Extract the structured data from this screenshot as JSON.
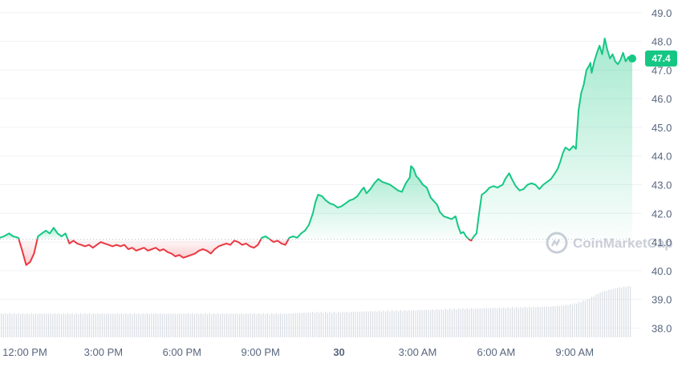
{
  "chart_data": {
    "type": "line",
    "y_ticks": [
      "49.0",
      "48.0",
      "47.0",
      "46.0",
      "45.0",
      "44.0",
      "43.0",
      "42.0",
      "41.0",
      "40.0",
      "39.0",
      "38.0"
    ],
    "ylim": [
      37.9,
      49.05
    ],
    "x_ticks": [
      {
        "label": "12:00 PM",
        "t": 12,
        "bold": false
      },
      {
        "label": "3:00 PM",
        "t": 15,
        "bold": false
      },
      {
        "label": "6:00 PM",
        "t": 18,
        "bold": false
      },
      {
        "label": "9:00 PM",
        "t": 21,
        "bold": false
      },
      {
        "label": "30",
        "t": 24,
        "bold": true
      },
      {
        "label": "3:00 AM",
        "t": 27,
        "bold": false
      },
      {
        "label": "6:00 AM",
        "t": 30,
        "bold": false
      },
      {
        "label": "9:00 AM",
        "t": 33,
        "bold": false
      }
    ],
    "xlim": [
      11.05,
      35.2
    ],
    "baseline": 41.1,
    "last_value": 47.4,
    "last_value_label": "47.4",
    "watermark": "CoinMarketCap",
    "colors": {
      "up": "#16c784",
      "down": "#ea3943",
      "grid": "#eff2f5",
      "volume": "#d9dde4",
      "baseline": "#c0c6d0"
    },
    "series": [
      {
        "values": [
          [
            11.05,
            41.15
          ],
          [
            11.2,
            41.2
          ],
          [
            11.4,
            41.3
          ],
          [
            11.55,
            41.2
          ],
          [
            11.75,
            41.15
          ],
          [
            11.9,
            40.7
          ],
          [
            12.05,
            40.2
          ],
          [
            12.2,
            40.3
          ],
          [
            12.35,
            40.6
          ],
          [
            12.5,
            41.2
          ],
          [
            12.65,
            41.3
          ],
          [
            12.8,
            41.4
          ],
          [
            12.95,
            41.3
          ],
          [
            13.1,
            41.5
          ],
          [
            13.25,
            41.3
          ],
          [
            13.4,
            41.2
          ],
          [
            13.55,
            41.3
          ],
          [
            13.7,
            40.95
          ],
          [
            13.85,
            41.05
          ],
          [
            14.0,
            40.95
          ],
          [
            14.15,
            40.9
          ],
          [
            14.3,
            40.85
          ],
          [
            14.45,
            40.9
          ],
          [
            14.6,
            40.8
          ],
          [
            14.75,
            40.9
          ],
          [
            14.9,
            41.0
          ],
          [
            15.05,
            40.95
          ],
          [
            15.2,
            40.9
          ],
          [
            15.35,
            40.85
          ],
          [
            15.5,
            40.9
          ],
          [
            15.65,
            40.85
          ],
          [
            15.8,
            40.9
          ],
          [
            15.95,
            40.75
          ],
          [
            16.1,
            40.8
          ],
          [
            16.25,
            40.7
          ],
          [
            16.4,
            40.75
          ],
          [
            16.55,
            40.8
          ],
          [
            16.7,
            40.7
          ],
          [
            16.85,
            40.75
          ],
          [
            17.0,
            40.8
          ],
          [
            17.15,
            40.7
          ],
          [
            17.3,
            40.75
          ],
          [
            17.45,
            40.65
          ],
          [
            17.6,
            40.6
          ],
          [
            17.75,
            40.5
          ],
          [
            17.9,
            40.55
          ],
          [
            18.05,
            40.45
          ],
          [
            18.2,
            40.5
          ],
          [
            18.35,
            40.55
          ],
          [
            18.5,
            40.6
          ],
          [
            18.65,
            40.7
          ],
          [
            18.8,
            40.75
          ],
          [
            18.95,
            40.7
          ],
          [
            19.1,
            40.6
          ],
          [
            19.25,
            40.75
          ],
          [
            19.4,
            40.85
          ],
          [
            19.55,
            40.9
          ],
          [
            19.7,
            40.95
          ],
          [
            19.85,
            40.9
          ],
          [
            20.0,
            41.05
          ],
          [
            20.15,
            41.0
          ],
          [
            20.3,
            40.9
          ],
          [
            20.45,
            40.95
          ],
          [
            20.6,
            40.85
          ],
          [
            20.75,
            40.8
          ],
          [
            20.9,
            40.9
          ],
          [
            21.05,
            41.15
          ],
          [
            21.2,
            41.2
          ],
          [
            21.35,
            41.1
          ],
          [
            21.5,
            41.0
          ],
          [
            21.65,
            41.05
          ],
          [
            21.8,
            40.95
          ],
          [
            21.95,
            40.9
          ],
          [
            22.1,
            41.15
          ],
          [
            22.25,
            41.2
          ],
          [
            22.4,
            41.15
          ],
          [
            22.55,
            41.3
          ],
          [
            22.7,
            41.4
          ],
          [
            22.85,
            41.6
          ],
          [
            23.0,
            42.0
          ],
          [
            23.1,
            42.4
          ],
          [
            23.2,
            42.65
          ],
          [
            23.35,
            42.6
          ],
          [
            23.5,
            42.45
          ],
          [
            23.65,
            42.35
          ],
          [
            23.8,
            42.3
          ],
          [
            23.95,
            42.2
          ],
          [
            24.1,
            42.25
          ],
          [
            24.25,
            42.35
          ],
          [
            24.4,
            42.45
          ],
          [
            24.55,
            42.5
          ],
          [
            24.7,
            42.6
          ],
          [
            24.85,
            42.8
          ],
          [
            24.95,
            42.9
          ],
          [
            25.05,
            42.7
          ],
          [
            25.2,
            42.85
          ],
          [
            25.35,
            43.05
          ],
          [
            25.5,
            43.2
          ],
          [
            25.65,
            43.1
          ],
          [
            25.8,
            43.05
          ],
          [
            25.95,
            43.0
          ],
          [
            26.1,
            42.9
          ],
          [
            26.25,
            42.8
          ],
          [
            26.4,
            42.75
          ],
          [
            26.55,
            43.05
          ],
          [
            26.7,
            43.25
          ],
          [
            26.75,
            43.65
          ],
          [
            26.85,
            43.55
          ],
          [
            26.95,
            43.3
          ],
          [
            27.05,
            43.2
          ],
          [
            27.2,
            43.0
          ],
          [
            27.35,
            42.9
          ],
          [
            27.5,
            42.55
          ],
          [
            27.6,
            42.45
          ],
          [
            27.75,
            42.3
          ],
          [
            27.85,
            42.05
          ],
          [
            28.0,
            41.9
          ],
          [
            28.15,
            41.85
          ],
          [
            28.3,
            41.8
          ],
          [
            28.45,
            41.9
          ],
          [
            28.55,
            41.55
          ],
          [
            28.65,
            41.3
          ],
          [
            28.75,
            41.35
          ],
          [
            28.85,
            41.2
          ],
          [
            28.95,
            41.1
          ],
          [
            29.05,
            41.05
          ],
          [
            29.15,
            41.2
          ],
          [
            29.25,
            41.3
          ],
          [
            29.35,
            42.0
          ],
          [
            29.45,
            42.65
          ],
          [
            29.6,
            42.75
          ],
          [
            29.75,
            42.9
          ],
          [
            29.9,
            42.95
          ],
          [
            30.05,
            42.9
          ],
          [
            30.15,
            42.95
          ],
          [
            30.25,
            43.0
          ],
          [
            30.35,
            43.2
          ],
          [
            30.5,
            43.4
          ],
          [
            30.6,
            43.2
          ],
          [
            30.75,
            42.95
          ],
          [
            30.9,
            42.8
          ],
          [
            31.05,
            42.85
          ],
          [
            31.2,
            43.0
          ],
          [
            31.35,
            43.05
          ],
          [
            31.5,
            43.0
          ],
          [
            31.65,
            42.85
          ],
          [
            31.8,
            43.0
          ],
          [
            31.95,
            43.1
          ],
          [
            32.1,
            43.2
          ],
          [
            32.25,
            43.4
          ],
          [
            32.35,
            43.55
          ],
          [
            32.45,
            43.8
          ],
          [
            32.55,
            44.1
          ],
          [
            32.65,
            44.3
          ],
          [
            32.8,
            44.2
          ],
          [
            32.95,
            44.35
          ],
          [
            33.05,
            44.25
          ],
          [
            33.15,
            45.6
          ],
          [
            33.25,
            46.2
          ],
          [
            33.35,
            46.5
          ],
          [
            33.45,
            47.0
          ],
          [
            33.55,
            47.15
          ],
          [
            33.6,
            47.25
          ],
          [
            33.65,
            46.9
          ],
          [
            33.75,
            47.3
          ],
          [
            33.85,
            47.6
          ],
          [
            33.95,
            47.85
          ],
          [
            34.05,
            47.55
          ],
          [
            34.15,
            48.1
          ],
          [
            34.25,
            47.7
          ],
          [
            34.35,
            47.4
          ],
          [
            34.45,
            47.55
          ],
          [
            34.55,
            47.3
          ],
          [
            34.65,
            47.2
          ],
          [
            34.75,
            47.35
          ],
          [
            34.85,
            47.6
          ],
          [
            34.95,
            47.3
          ],
          [
            35.05,
            47.45
          ],
          [
            35.2,
            47.4
          ]
        ]
      }
    ],
    "volume": [
      [
        11.1,
        38.5
      ],
      [
        11.5,
        38.5
      ],
      [
        12.0,
        38.5
      ],
      [
        13.0,
        38.5
      ],
      [
        14.0,
        38.5
      ],
      [
        15.0,
        38.5
      ],
      [
        16.0,
        38.5
      ],
      [
        17.0,
        38.5
      ],
      [
        18.0,
        38.5
      ],
      [
        19.0,
        38.5
      ],
      [
        20.0,
        38.5
      ],
      [
        21.0,
        38.5
      ],
      [
        22.0,
        38.5
      ],
      [
        23.0,
        38.55
      ],
      [
        24.0,
        38.55
      ],
      [
        25.0,
        38.58
      ],
      [
        26.0,
        38.6
      ],
      [
        27.0,
        38.62
      ],
      [
        28.0,
        38.65
      ],
      [
        29.0,
        38.68
      ],
      [
        30.0,
        38.7
      ],
      [
        31.0,
        38.72
      ],
      [
        32.0,
        38.75
      ],
      [
        32.5,
        38.78
      ],
      [
        33.0,
        38.85
      ],
      [
        33.5,
        39.0
      ],
      [
        34.0,
        39.25
      ],
      [
        34.5,
        39.38
      ],
      [
        35.0,
        39.45
      ],
      [
        35.2,
        39.47
      ]
    ]
  }
}
